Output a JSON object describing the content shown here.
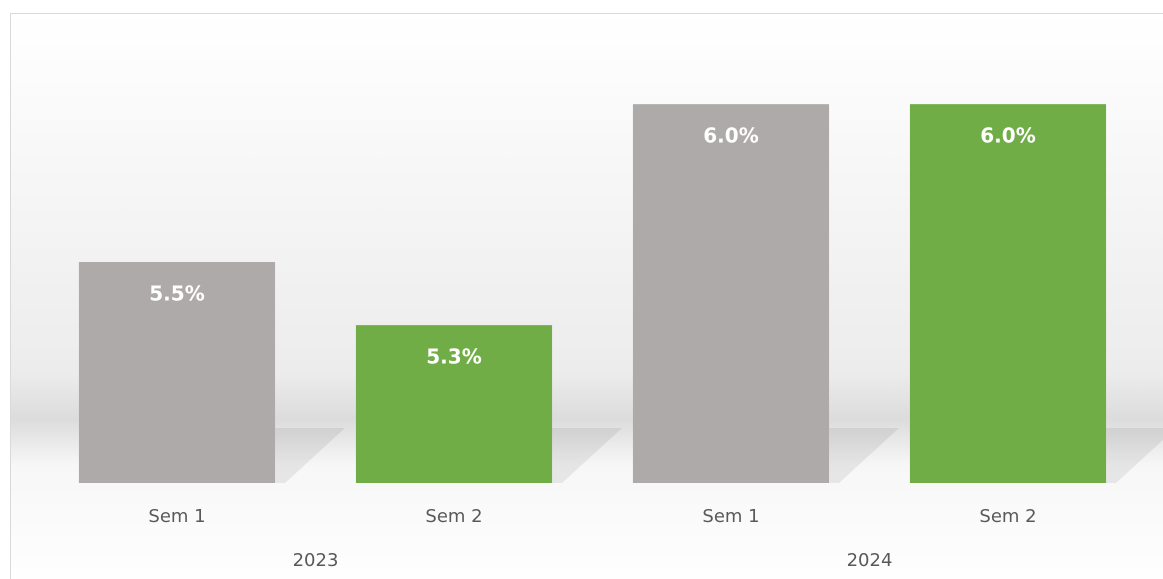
{
  "chart_data": {
    "type": "bar",
    "categories": [
      "Sem 1",
      "Sem 2",
      "Sem 1",
      "Sem 2"
    ],
    "groups": [
      {
        "label": "2023",
        "size": 2
      },
      {
        "label": "2024",
        "size": 2
      }
    ],
    "values": [
      5.5,
      5.3,
      6.0,
      6.0
    ],
    "value_labels": [
      "5.5%",
      "5.3%",
      "6.0%",
      "6.0%"
    ],
    "colors": [
      "#aeaaaa",
      "#70ad47",
      "#aeaaaa",
      "#70ad47"
    ],
    "ylim": [
      4.8,
      6.2
    ]
  }
}
